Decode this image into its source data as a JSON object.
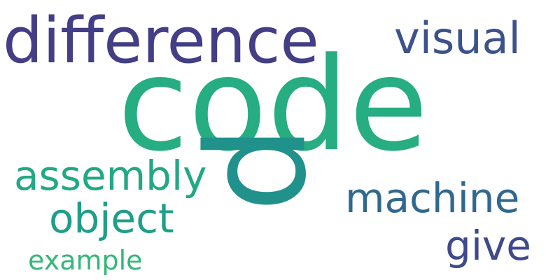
{
  "words": [
    {
      "id": "code",
      "text": "code",
      "color": "#26ad81"
    },
    {
      "id": "difference",
      "text": "difference",
      "color": "#433e85"
    },
    {
      "id": "visual",
      "text": "visual",
      "color": "#3b528b"
    },
    {
      "id": "p",
      "text": "p",
      "color": "#21918c"
    },
    {
      "id": "assembly",
      "text": "assembly",
      "color": "#22a884"
    },
    {
      "id": "machine",
      "text": "machine",
      "color": "#31688e"
    },
    {
      "id": "object",
      "text": "object",
      "color": "#1f9e89"
    },
    {
      "id": "give",
      "text": "give",
      "color": "#3e4a89"
    },
    {
      "id": "example",
      "text": "example",
      "color": "#35b779"
    }
  ]
}
